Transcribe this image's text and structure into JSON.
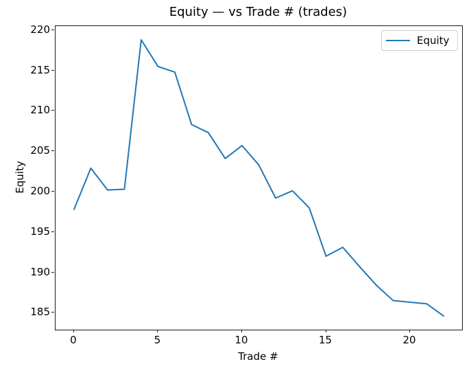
{
  "figure": {
    "background": "#ffffff",
    "frame_color": "#1a1a1a"
  },
  "chart_data": {
    "type": "line",
    "title": "Equity — vs Trade # (trades)",
    "xlabel": "Trade #",
    "ylabel": "Equity",
    "x": [
      0,
      1,
      2,
      3,
      4,
      5,
      6,
      7,
      8,
      9,
      10,
      11,
      12,
      13,
      14,
      15,
      16,
      17,
      18,
      19,
      20,
      21,
      22
    ],
    "series": [
      {
        "name": "Equity",
        "color": "#1f77b4",
        "values": [
          197.8,
          202.9,
          200.2,
          200.3,
          218.8,
          215.5,
          214.8,
          208.3,
          207.3,
          204.1,
          205.7,
          203.3,
          199.2,
          200.1,
          198.0,
          192.0,
          193.1,
          190.7,
          188.4,
          186.5,
          186.3,
          186.1,
          184.6
        ]
      }
    ],
    "xlim": [
      -1.1,
      23.1
    ],
    "ylim": [
      182.9,
      220.5
    ],
    "xticks": [
      0,
      5,
      10,
      15,
      20
    ],
    "yticks": [
      185,
      190,
      195,
      200,
      205,
      210,
      215,
      220
    ],
    "grid": false,
    "legend": {
      "position": "upper right",
      "entries": [
        {
          "label": "Equity",
          "color": "#1f77b4"
        }
      ]
    }
  }
}
